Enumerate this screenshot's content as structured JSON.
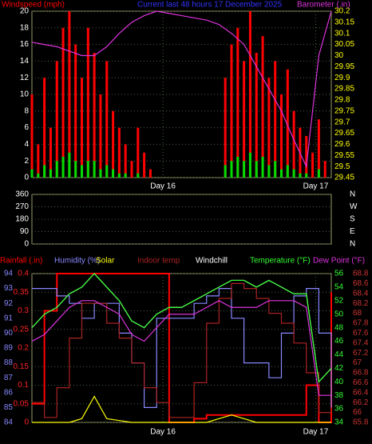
{
  "chart_data": [
    {
      "type": "combo",
      "title": "Current last 48 hours 17 December 2025",
      "title_color": "#3333ff",
      "ylim": [
        0,
        20
      ],
      "yticks": [
        0,
        2,
        4,
        6,
        8,
        10,
        12,
        14,
        16,
        18,
        20
      ],
      "y2lim": [
        29.45,
        30.2
      ],
      "y2ticks": [
        29.45,
        29.5,
        29.55,
        29.6,
        29.65,
        29.7,
        29.75,
        29.8,
        29.85,
        29.9,
        29.95,
        30,
        30.05,
        30.1,
        30.15,
        30.2
      ],
      "axis_colors": {
        "y": "#ffffff",
        "y2": "#ffff00"
      },
      "xlim": [
        0,
        48
      ],
      "xticks": [
        {
          "value": 21,
          "label": "Day 16"
        },
        {
          "value": 45.5,
          "label": "Day 17"
        }
      ],
      "grid": true,
      "series": [
        {
          "name": "Windspeed (mph)",
          "kind": "bar",
          "color": "#ff0000",
          "axis": "y",
          "x": [
            0,
            1,
            2,
            3,
            4,
            5,
            6,
            7,
            8,
            9,
            10,
            11,
            12,
            13,
            14,
            15,
            16,
            17,
            18,
            19,
            20,
            21,
            22,
            23,
            24,
            25,
            26,
            27,
            28,
            29,
            30,
            31,
            32,
            33,
            34,
            35,
            36,
            37,
            38,
            39,
            40,
            41,
            42,
            43,
            44,
            45,
            46,
            47
          ],
          "values": [
            10,
            4,
            12,
            6,
            14,
            18,
            20,
            16,
            12,
            18,
            15,
            10,
            14,
            8,
            6,
            4,
            2,
            6,
            3,
            1,
            0,
            0,
            0,
            0,
            0,
            0,
            0,
            0,
            0,
            0,
            0,
            12,
            16,
            18,
            14,
            20,
            15,
            17,
            12,
            14,
            10,
            13,
            8,
            6,
            5,
            3,
            7,
            2
          ]
        },
        {
          "kind": "bar",
          "color": "#00dd00",
          "axis": "y",
          "x": [
            0,
            1,
            2,
            3,
            4,
            5,
            6,
            7,
            8,
            9,
            10,
            11,
            12,
            13,
            14,
            15,
            16,
            17,
            18,
            19,
            20,
            21,
            22,
            23,
            24,
            25,
            26,
            27,
            28,
            29,
            30,
            31,
            32,
            33,
            34,
            35,
            36,
            37,
            38,
            39,
            40,
            41,
            42,
            43,
            44,
            45,
            46,
            47
          ],
          "values": [
            1,
            0.5,
            1.5,
            1,
            2,
            2.5,
            3,
            2,
            1.5,
            2,
            2,
            1,
            1.5,
            1,
            0.5,
            0.5,
            0,
            0.5,
            0,
            0,
            0,
            0,
            0,
            0,
            0,
            0,
            0,
            0,
            0,
            0,
            0,
            1.5,
            2,
            2.5,
            2,
            3,
            2,
            2.5,
            1.5,
            2,
            1,
            1.5,
            1,
            0.5,
            0.5,
            0,
            1,
            0
          ]
        },
        {
          "name": "Barometer (.in)",
          "kind": "line",
          "color": "#dd33dd",
          "axis": "y2",
          "x": [
            0,
            2,
            4,
            6,
            8,
            10,
            12,
            14,
            16,
            18,
            20,
            22,
            24,
            26,
            28,
            30,
            32,
            34,
            36,
            38,
            40,
            42,
            44,
            46,
            48
          ],
          "values": [
            30.06,
            30.05,
            30.04,
            30.02,
            30,
            30,
            30.04,
            30.1,
            30.15,
            30.18,
            30.2,
            30.19,
            30.18,
            30.17,
            30.16,
            30.14,
            30.1,
            30.05,
            29.95,
            29.85,
            29.75,
            29.62,
            29.5,
            30,
            30.2
          ]
        }
      ]
    },
    {
      "type": "direction",
      "ylim": [
        0,
        360
      ],
      "yticks": [
        0,
        90,
        180,
        270,
        360
      ],
      "direction_labels": [
        "N",
        "E",
        "S",
        "W",
        "N"
      ],
      "axis_colors": {
        "y": "#ffffff"
      },
      "xlim": [
        0,
        48
      ],
      "xticks": [],
      "grid": true,
      "series": []
    },
    {
      "type": "combo",
      "ylim": [
        0,
        0.4
      ],
      "yticks": [
        0,
        0.05,
        0.1,
        0.15,
        0.2,
        0.25,
        0.3,
        0.35,
        0.4
      ],
      "y2lim": [
        34,
        56
      ],
      "y2ticks": [
        34,
        36,
        38,
        40,
        42,
        44,
        46,
        48,
        50,
        52,
        54,
        56
      ],
      "y3lim": [
        84,
        94
      ],
      "y3ticks": [
        84,
        85,
        86,
        87,
        88,
        89,
        90,
        91,
        92,
        93,
        94
      ],
      "y4lim": [
        65.8,
        68.8
      ],
      "y4ticks": [
        65.8,
        66,
        66.2,
        66.4,
        66.6,
        66.8,
        67,
        67.2,
        67.4,
        67.6,
        67.8,
        68,
        68.2,
        68.4,
        68.6,
        68.8
      ],
      "axis_colors": {
        "y": "#ff2222",
        "y2": "#33ff33",
        "y3": "#8888ff",
        "y4": "#cc3333"
      },
      "xlim": [
        0,
        48
      ],
      "xticks": [
        {
          "value": 21,
          "label": "Day 16"
        },
        {
          "value": 45.5,
          "label": "Day 17"
        }
      ],
      "grid": true,
      "series": [
        {
          "name": "Rainfall (.in)",
          "kind": "step",
          "color": "#ff0000",
          "axis": "y",
          "x": [
            0,
            2,
            4,
            6,
            8,
            10,
            12,
            14,
            16,
            18,
            20,
            22,
            24,
            26,
            28,
            30,
            32,
            34,
            36,
            38,
            40,
            42,
            44,
            46,
            48
          ],
          "values": [
            0.05,
            0.3,
            0.4,
            0.4,
            0.4,
            0.4,
            0.4,
            0.4,
            0.4,
            0.4,
            0.4,
            0,
            0,
            0.01,
            0.02,
            0.02,
            0.02,
            0.02,
            0.02,
            0.02,
            0.02,
            0.02,
            0.1,
            0,
            0.35
          ]
        },
        {
          "name": "Humidity (%)",
          "kind": "step",
          "color": "#8888ff",
          "axis": "y3",
          "x": [
            0,
            2,
            4,
            6,
            8,
            10,
            12,
            14,
            16,
            18,
            20,
            22,
            24,
            26,
            28,
            30,
            32,
            34,
            36,
            38,
            40,
            42,
            44,
            46,
            48
          ],
          "values": [
            93,
            93,
            92.5,
            92,
            91,
            92,
            92,
            90,
            88,
            85,
            91,
            91,
            91,
            92,
            92.5,
            93,
            91,
            88,
            88,
            87,
            90,
            92.5,
            93,
            90,
            85
          ]
        },
        {
          "name": "Solar",
          "kind": "line",
          "color": "#ffff00",
          "axis": "y",
          "x": [
            0,
            2,
            4,
            6,
            8,
            10,
            12,
            14,
            16,
            18,
            20,
            22,
            24,
            26,
            28,
            30,
            32,
            34,
            36,
            38,
            40,
            42,
            44,
            46,
            48
          ],
          "values": [
            0,
            0,
            0,
            0,
            0.01,
            0.07,
            0.01,
            0.005,
            0,
            0,
            0,
            0,
            0,
            0,
            0,
            0.01,
            0.02,
            0.01,
            0,
            0,
            0,
            0,
            0,
            0,
            0
          ]
        },
        {
          "name": "Indoor temp",
          "kind": "step",
          "color": "#aa2222",
          "axis": "y4",
          "x": [
            0,
            2,
            4,
            6,
            8,
            10,
            12,
            14,
            16,
            18,
            20,
            22,
            24,
            26,
            28,
            30,
            32,
            34,
            36,
            38,
            40,
            42,
            44,
            46,
            48
          ],
          "values": [
            66.2,
            65.9,
            66.5,
            67.5,
            68.2,
            68.2,
            67.8,
            67.5,
            67,
            66.5,
            66.2,
            65.9,
            65.9,
            66.6,
            67.8,
            68.3,
            68.6,
            68.5,
            68.3,
            68,
            67.8,
            67.4,
            66.8,
            66,
            66.1
          ]
        },
        {
          "name": "Windchill",
          "kind": "line",
          "color": "#ffffff",
          "axis": "y2",
          "x": [
            0,
            2,
            4,
            6,
            8,
            10,
            12,
            14,
            16,
            18,
            20,
            22,
            24,
            26,
            28,
            30,
            32,
            34,
            36,
            38,
            40,
            42,
            44,
            46,
            48
          ],
          "values": [
            48,
            50,
            51,
            53,
            54,
            56,
            54,
            52,
            49,
            48,
            50,
            51,
            51,
            52,
            53,
            54,
            55,
            55,
            54,
            55,
            54,
            53,
            53,
            40,
            42
          ]
        },
        {
          "name": "Temperature (°F)",
          "kind": "line",
          "color": "#33ff33",
          "axis": "y2",
          "x": [
            0,
            2,
            4,
            6,
            8,
            10,
            12,
            14,
            16,
            18,
            20,
            22,
            24,
            26,
            28,
            30,
            32,
            34,
            36,
            38,
            40,
            42,
            44,
            46,
            48
          ],
          "values": [
            48,
            50,
            51,
            53,
            54,
            56,
            54,
            52,
            49,
            48,
            50,
            51,
            51,
            52,
            53,
            54,
            55,
            55,
            54,
            55,
            54,
            53,
            53,
            40,
            42
          ]
        },
        {
          "name": "Dew Point (°F)",
          "kind": "line",
          "color": "#dd33dd",
          "axis": "y2",
          "x": [
            0,
            2,
            4,
            6,
            8,
            10,
            12,
            14,
            16,
            18,
            20,
            22,
            24,
            26,
            28,
            30,
            32,
            34,
            36,
            38,
            40,
            42,
            44,
            46,
            48
          ],
          "values": [
            46,
            47,
            49,
            51,
            52,
            52,
            51,
            50,
            47,
            46,
            48,
            50,
            50,
            50,
            51,
            52,
            51,
            51,
            51,
            52,
            52,
            52,
            51,
            38,
            38
          ]
        }
      ]
    }
  ]
}
